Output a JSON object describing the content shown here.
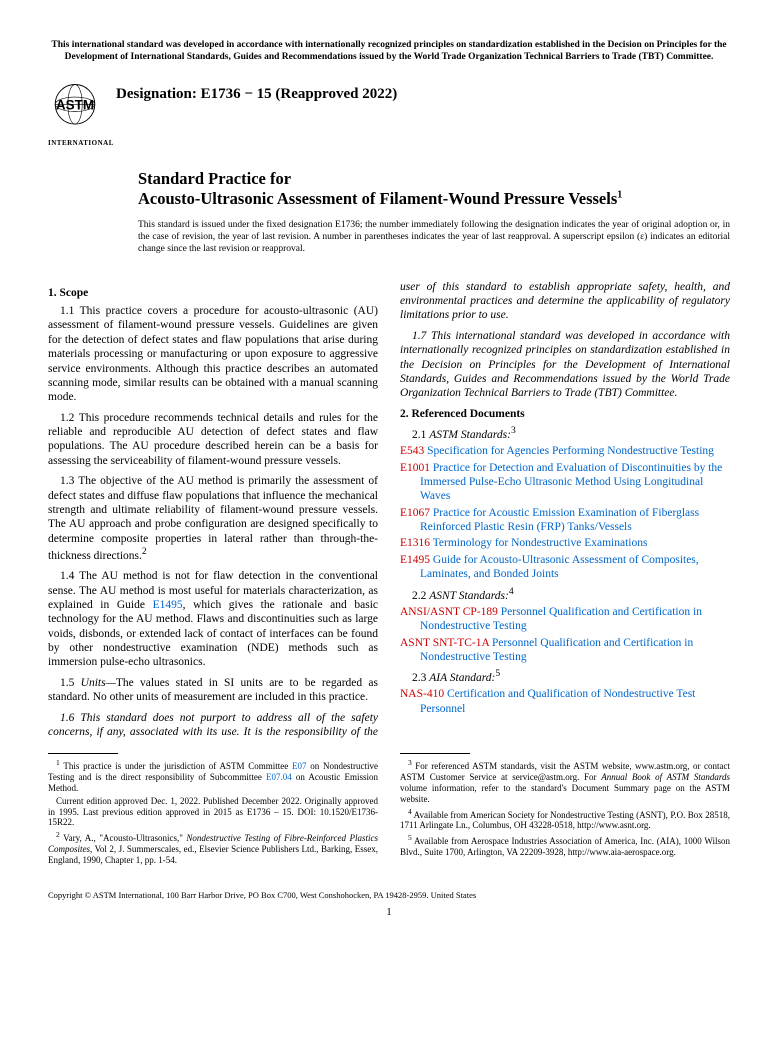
{
  "header_note": "This international standard was developed in accordance with internationally recognized principles on standardization established in the Decision on Principles for the Development of International Standards, Guides and Recommendations issued by the World Trade Organization Technical Barriers to Trade (TBT) Committee.",
  "logo_text": "INTERNATIONAL",
  "designation": "Designation: E1736 − 15 (Reapproved 2022)",
  "title_line1": "Standard Practice for",
  "title_line2": "Acousto-Ultrasonic Assessment of Filament-Wound Pressure Vessels",
  "title_sup": "1",
  "issuance_note": "This standard is issued under the fixed designation E1736; the number immediately following the designation indicates the year of original adoption or, in the case of revision, the year of last revision. A number in parentheses indicates the year of last reapproval. A superscript epsilon (ε) indicates an editorial change since the last revision or reapproval.",
  "s1_head": "1.  Scope",
  "p1_1": "1.1 This practice covers a procedure for acousto-ultrasonic (AU) assessment of filament-wound pressure vessels. Guidelines are given for the detection of defect states and flaw populations that arise during materials processing or manufacturing or upon exposure to aggressive service environments. Although this practice describes an automated scanning mode, similar results can be obtained with a manual scanning mode.",
  "p1_2": "1.2 This procedure recommends technical details and rules for the reliable and reproducible AU detection of defect states and flaw populations. The AU procedure described herein can be a basis for assessing the serviceability of filament-wound pressure vessels.",
  "p1_3a": "1.3 The objective of the AU method is primarily the assessment of defect states and diffuse flaw populations that influence the mechanical strength and ultimate reliability of filament-wound pressure vessels. The AU approach and probe configuration are designed specifically to determine composite properties in lateral rather than through-the-thickness directions.",
  "p1_3_sup": "2",
  "p1_4a": "1.4 The AU method is not for flaw detection in the conventional sense. The AU method is most useful for materials characterization, as explained in Guide ",
  "p1_4_link": "E1495",
  "p1_4b": ", which gives the rationale and basic technology for the AU method. Flaws and discontinuities such as large voids, disbonds, or extended lack of contact of interfaces can be found by other nondestructive examination (NDE) methods such as immersion pulse-echo ultrasonics.",
  "p1_5_label": "1.5 ",
  "p1_5_units": "Units—",
  "p1_5_body": "The values stated in SI units are to be regarded as standard. No other units of measurement are included in this practice.",
  "p1_6": "1.6 This standard does not purport to address all of the safety concerns, if any, associated with its use. It is the responsibility of the user of this standard to establish appropriate safety, health, and environmental practices and determine the applicability of regulatory limitations prior to use.",
  "p1_7": "1.7 This international standard was developed in accordance with internationally recognized principles on standardization established in the Decision on Principles for the Development of International Standards, Guides and Recommendations issued by the World Trade Organization Technical Barriers to Trade (TBT) Committee.",
  "s2_head": "2.  Referenced Documents",
  "s2_1_label": "2.1 ",
  "s2_1_ital": "ASTM Standards:",
  "s2_1_sup": "3",
  "refs_astm": [
    {
      "code": "E543",
      "text": "Specification for Agencies Performing Nondestructive Testing"
    },
    {
      "code": "E1001",
      "text": "Practice for Detection and Evaluation of Discontinuities by the Immersed Pulse-Echo Ultrasonic Method Using Longitudinal Waves"
    },
    {
      "code": "E1067",
      "text": "Practice for Acoustic Emission Examination of Fiberglass Reinforced Plastic Resin (FRP) Tanks/Vessels"
    },
    {
      "code": "E1316",
      "text": "Terminology for Nondestructive Examinations"
    },
    {
      "code": "E1495",
      "text": "Guide for Acousto-Ultrasonic Assessment of Composites, Laminates, and Bonded Joints"
    }
  ],
  "s2_2_label": "2.2 ",
  "s2_2_ital": "ASNT Standards:",
  "s2_2_sup": "4",
  "refs_asnt": [
    {
      "code": "ANSI/ASNT CP-189",
      "text": "Personnel Qualification and Certification in Nondestructive Testing"
    },
    {
      "code": "ASNT SNT-TC-1A",
      "text": "Personnel Qualification and Certification in Nondestructive Testing"
    }
  ],
  "s2_3_label": "2.3 ",
  "s2_3_ital": "AIA Standard:",
  "s2_3_sup": "5",
  "refs_aia": [
    {
      "code": "NAS-410",
      "text": "Certification and Qualification of Nondestructive Test Personnel"
    }
  ],
  "fn1a": " This practice is under the jurisdiction of ASTM Committee ",
  "fn1_link1": "E07",
  "fn1b": " on Nondestructive Testing and is the direct responsibility of Subcommittee ",
  "fn1_link2": "E07.04",
  "fn1c": " on Acoustic Emission Method.",
  "fn1_p2": "Current edition approved Dec. 1, 2022. Published December 2022. Originally approved in 1995. Last previous edition approved in 2015 as E1736 – 15. DOI: 10.1520/E1736-15R22.",
  "fn2a": " Vary, A., \"Acousto-Ultrasonics,\" ",
  "fn2_ital": "Nondestructive Testing of Fibre-Reinforced Plastics Composites",
  "fn2b": ", Vol 2, J. Summerscales, ed., Elsevier Science Publishers Ltd., Barking, Essex, England, 1990, Chapter 1, pp. 1-54.",
  "fn3a": " For referenced ASTM standards, visit the ASTM website, www.astm.org, or contact ASTM Customer Service at service@astm.org. For ",
  "fn3_ital": "Annual Book of ASTM Standards",
  "fn3b": " volume information, refer to the standard's Document Summary page on the ASTM website.",
  "fn4": " Available from American Society for Nondestructive Testing (ASNT), P.O. Box 28518, 1711 Arlingate Ln., Columbus, OH 43228-0518, http://www.asnt.org.",
  "fn5": " Available from Aerospace Industries Association of America, Inc. (AIA), 1000 Wilson Blvd., Suite 1700, Arlington, VA 22209-3928, http://www.aia-aerospace.org.",
  "copyright": "Copyright © ASTM International, 100 Barr Harbor Drive, PO Box C700, West Conshohocken, PA 19428-2959. United States",
  "pagenum": "1",
  "colors": {
    "link": "#0066cc",
    "ref_code": "#cc0000",
    "text": "#000000"
  }
}
